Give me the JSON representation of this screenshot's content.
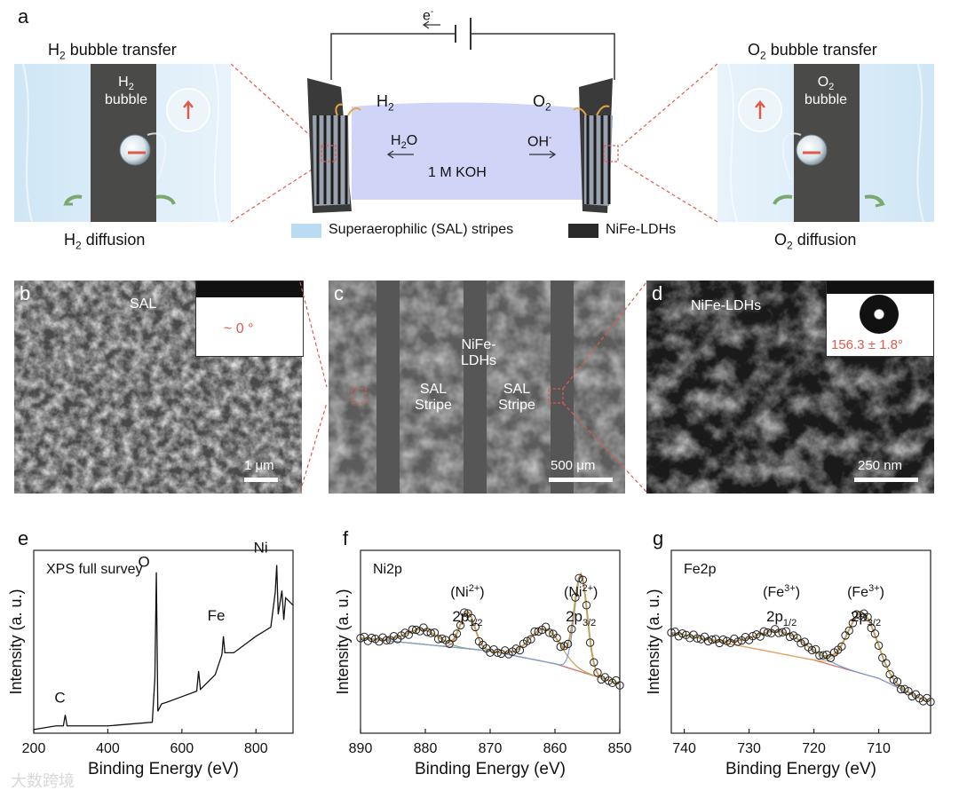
{
  "panel_labels": {
    "a": "a",
    "b": "b",
    "c": "c",
    "d": "d",
    "e": "e",
    "f": "f",
    "g": "g"
  },
  "panel_a": {
    "left_title_prefix": "H",
    "left_title_sub": "2",
    "left_title_rest": " bubble transfer",
    "right_title_prefix": "O",
    "right_title_sub": "2",
    "right_title_rest": " bubble transfer",
    "left_bubble_prefix": "H",
    "left_bubble_sub": "2",
    "left_bubble_word": "bubble",
    "right_bubble_prefix": "O",
    "right_bubble_sub": "2",
    "right_bubble_word": "bubble",
    "left_diffusion_prefix": "H",
    "left_diffusion_sub": "2",
    "left_diffusion_rest": " diffusion",
    "right_diffusion_prefix": "O",
    "right_diffusion_sub": "2",
    "right_diffusion_rest": " diffusion",
    "electron": "e",
    "electron_sup": "-",
    "cell_h2": "H",
    "cell_h2_sub": "2",
    "cell_o2": "O",
    "cell_o2_sub": "2",
    "h2o": "H",
    "h2o_sub": "2",
    "h2o_rest": "O",
    "oh": "OH",
    "oh_sup": "-",
    "electrolyte": "1 M KOH",
    "legend_sal": "Superaerophilic (SAL) stripes",
    "legend_ldh": "NiFe-LDHs",
    "colors": {
      "sal": "#b9dcf2",
      "ldh": "#2a2a2a",
      "electrolyte": "#c8cdf5",
      "dash": "#e05a4a"
    }
  },
  "panel_b": {
    "label": "SAL",
    "angle": "~ 0 °",
    "scale": "1 μm"
  },
  "panel_c": {
    "center_1": "NiFe-",
    "center_2": "LDHs",
    "stripe_l1": "SAL",
    "stripe_l2": "Stripe",
    "stripe_r1": "SAL",
    "stripe_r2": "Stripe",
    "scale": "500 μm"
  },
  "panel_d": {
    "label": "NiFe-LDHs",
    "angle": "156.3 ± 1.8°",
    "scale": "250 nm"
  },
  "chart_data": [
    {
      "type": "line",
      "panel": "e",
      "annotation": "XPS full survey",
      "xlabel": "Binding Energy (eV)",
      "ylabel": "Intensity (a. u.)",
      "xlim": [
        200,
        900
      ],
      "x_ticks": [
        "200",
        "400",
        "600",
        "800"
      ],
      "peak_labels": [
        {
          "text": "C",
          "x": 285
        },
        {
          "text": "O",
          "x": 531
        },
        {
          "text": "Fe",
          "x": 712
        },
        {
          "text": "Ni",
          "x": 856
        }
      ],
      "series": [
        {
          "x": [
            200,
            260,
            280,
            285,
            290,
            330,
            400,
            460,
            520,
            527,
            531,
            535,
            545,
            560,
            600,
            640,
            645,
            650,
            690,
            708,
            712,
            716,
            740,
            780,
            800,
            840,
            852,
            856,
            860,
            870,
            875,
            880,
            900
          ],
          "y": [
            0.02,
            0.04,
            0.04,
            0.1,
            0.04,
            0.04,
            0.04,
            0.05,
            0.06,
            0.3,
            0.88,
            0.12,
            0.16,
            0.17,
            0.2,
            0.23,
            0.34,
            0.24,
            0.32,
            0.43,
            0.53,
            0.44,
            0.44,
            0.5,
            0.53,
            0.58,
            0.77,
            0.92,
            0.65,
            0.78,
            0.62,
            0.74,
            0.7
          ]
        }
      ]
    },
    {
      "type": "line",
      "panel": "f",
      "annotation": "Ni2p",
      "xlabel": "Binding Energy (eV)",
      "ylabel": "Intensity (a. u.)",
      "xlim": [
        890,
        850
      ],
      "x_ticks": [
        "890",
        "880",
        "870",
        "860",
        "850"
      ],
      "peak_labels": [
        {
          "line1": "(Ni",
          "sup": "2+",
          "line1_end": ")",
          "line2": "2p",
          "sub": "1/2",
          "x": 873.5
        },
        {
          "line1": "(Ni",
          "sup": "2+",
          "line1_end": ")",
          "line2": "2p",
          "sub": "3/2",
          "x": 856
        }
      ],
      "series": [
        {
          "name": "data",
          "x": [
            890,
            887,
            885,
            882,
            879,
            877,
            875,
            873.5,
            872,
            870,
            868,
            865,
            862,
            860,
            858,
            856,
            855,
            853,
            851,
            850
          ],
          "y": [
            0.55,
            0.55,
            0.56,
            0.58,
            0.62,
            0.58,
            0.62,
            0.7,
            0.58,
            0.47,
            0.5,
            0.58,
            0.62,
            0.6,
            0.72,
            0.95,
            0.78,
            0.4,
            0.3,
            0.27
          ]
        },
        {
          "name": "background",
          "x": [
            890,
            870,
            860,
            850
          ],
          "y": [
            0.52,
            0.45,
            0.38,
            0.27
          ]
        }
      ],
      "colors": {
        "data": "#222222",
        "fit": "#c4a15a",
        "ni_peak": "#7b9fd4",
        "sat": "#e07870",
        "bg": "#7aa870"
      }
    },
    {
      "type": "line",
      "panel": "g",
      "annotation": "Fe2p",
      "xlabel": "Binding Energy (eV)",
      "ylabel": "Intensity (a. u.)",
      "xlim": [
        742,
        702
      ],
      "x_ticks": [
        "740",
        "730",
        "720",
        "710"
      ],
      "peak_labels": [
        {
          "line1": "(Fe",
          "sup": "3+",
          "line1_end": ")",
          "line2": "2p",
          "sub": "1/2",
          "x": 725
        },
        {
          "line1": "(Fe",
          "sup": "3+",
          "line1_end": ")",
          "line2": "2p",
          "sub": "3/2",
          "x": 712
        }
      ],
      "series": [
        {
          "name": "data",
          "x": [
            742,
            738,
            735,
            732,
            729,
            726,
            724,
            722,
            720,
            718,
            716,
            714,
            712,
            710,
            708,
            706,
            704,
            703
          ],
          "y": [
            0.58,
            0.58,
            0.58,
            0.59,
            0.61,
            0.63,
            0.61,
            0.6,
            0.6,
            0.6,
            0.62,
            0.66,
            0.67,
            0.58,
            0.44,
            0.3,
            0.2,
            0.16
          ]
        },
        {
          "name": "background",
          "x": [
            742,
            720,
            710,
            703
          ],
          "y": [
            0.55,
            0.4,
            0.3,
            0.18
          ]
        }
      ],
      "colors": {
        "data": "#222222",
        "fit": "#c4a15a",
        "p12": "#7b9fd4",
        "p32": "#e0a860",
        "bg": "#d06b60"
      }
    }
  ],
  "watermark": "大数跨境"
}
